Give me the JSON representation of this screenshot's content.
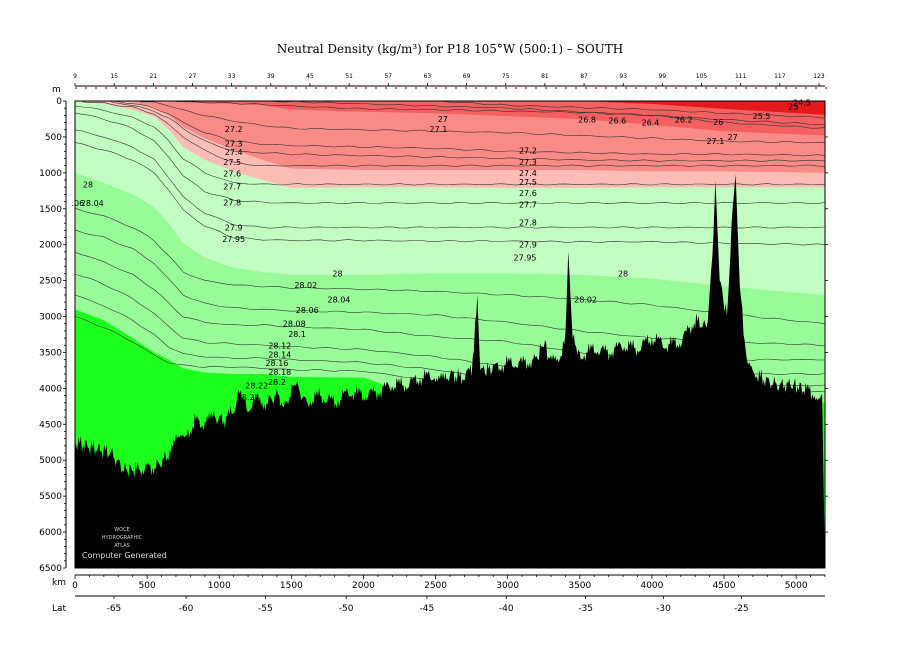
{
  "chart_data": {
    "type": "area",
    "title": "Neutral Density (kg/m³) for P18 105°W (500:1) – SOUTH",
    "axis_labels": {
      "depth": "m",
      "distance": "km",
      "latitude": "Lat"
    },
    "xlim_km": [
      0,
      5200
    ],
    "ylim_m": [
      0,
      6500
    ],
    "x_ticks": [
      "0",
      "500",
      "1000",
      "1500",
      "2000",
      "2500",
      "3000",
      "3500",
      "4000",
      "4500",
      "5000"
    ],
    "y_ticks": [
      "0",
      "500",
      "1000",
      "1500",
      "2000",
      "2500",
      "3000",
      "3500",
      "4000",
      "4500",
      "5000",
      "5500",
      "6000",
      "6500"
    ],
    "lat_ticks": [
      "-65",
      "-60",
      "-55",
      "-50",
      "-45",
      "-40",
      "-35",
      "-30",
      "-25"
    ],
    "lat_tick_km": [
      270,
      770,
      1320,
      1880,
      2440,
      2990,
      3540,
      4080,
      4620
    ],
    "station_labels": [
      "9",
      "15",
      "21",
      "27",
      "33",
      "39",
      "45",
      "51",
      "57",
      "63",
      "69",
      "75",
      "81",
      "87",
      "93",
      "99",
      "105",
      "111",
      "117",
      "123"
    ],
    "watermark": [
      "WOCE",
      "HYDROGRAPHIC",
      "ATLAS",
      "Computer Generated"
    ],
    "density_bands": [
      {
        "range": "< 26.0",
        "color": "#e4191b"
      },
      {
        "range": "26.0 – 27.0",
        "color": "#f45f5f"
      },
      {
        "range": "27.0 – 27.5",
        "color": "#fa8a85"
      },
      {
        "range": "27.5 – 27.7",
        "color": "#fcbcb6"
      },
      {
        "range": "27.7 – 28.0",
        "color": "#c2fec2"
      },
      {
        "range": "28.0 – 28.2",
        "color": "#97fb97"
      },
      {
        "range": "> 28.2",
        "color": "#1dff1d"
      }
    ],
    "contour_labels": [
      {
        "text": "24.5",
        "x_km": 5040,
        "depth_m": 20
      },
      {
        "text": "25",
        "x_km": 4980,
        "depth_m": 80
      },
      {
        "text": "25.5",
        "x_km": 4760,
        "depth_m": 210
      },
      {
        "text": "26",
        "x_km": 4460,
        "depth_m": 290
      },
      {
        "text": "26.2",
        "x_km": 4220,
        "depth_m": 260
      },
      {
        "text": "26.4",
        "x_km": 3990,
        "depth_m": 300
      },
      {
        "text": "26.6",
        "x_km": 3760,
        "depth_m": 270
      },
      {
        "text": "26.8",
        "x_km": 3550,
        "depth_m": 260
      },
      {
        "text": "27",
        "x_km": 2550,
        "depth_m": 250
      },
      {
        "text": "27.1",
        "x_km": 2520,
        "depth_m": 390
      },
      {
        "text": "27",
        "x_km": 4560,
        "depth_m": 500
      },
      {
        "text": "27.1",
        "x_km": 4440,
        "depth_m": 560
      },
      {
        "text": "27.2",
        "x_km": 1100,
        "depth_m": 390
      },
      {
        "text": "27.3",
        "x_km": 1100,
        "depth_m": 590
      },
      {
        "text": "27.4",
        "x_km": 1100,
        "depth_m": 710
      },
      {
        "text": "27.5",
        "x_km": 1090,
        "depth_m": 850
      },
      {
        "text": "27.6",
        "x_km": 1090,
        "depth_m": 1010
      },
      {
        "text": "27.7",
        "x_km": 1090,
        "depth_m": 1190
      },
      {
        "text": "27.8",
        "x_km": 1090,
        "depth_m": 1410
      },
      {
        "text": "27.9",
        "x_km": 1100,
        "depth_m": 1760
      },
      {
        "text": "27.95",
        "x_km": 1100,
        "depth_m": 1920
      },
      {
        "text": "27.2",
        "x_km": 3140,
        "depth_m": 690
      },
      {
        "text": "27.3",
        "x_km": 3140,
        "depth_m": 850
      },
      {
        "text": "27.4",
        "x_km": 3140,
        "depth_m": 1000
      },
      {
        "text": "27.5",
        "x_km": 3140,
        "depth_m": 1130
      },
      {
        "text": "27.6",
        "x_km": 3140,
        "depth_m": 1280
      },
      {
        "text": "27.7",
        "x_km": 3140,
        "depth_m": 1440
      },
      {
        "text": "27.8",
        "x_km": 3140,
        "depth_m": 1690
      },
      {
        "text": "27.9",
        "x_km": 3140,
        "depth_m": 2000
      },
      {
        "text": "27.95",
        "x_km": 3120,
        "depth_m": 2180
      },
      {
        "text": "28",
        "x_km": 90,
        "depth_m": 1160
      },
      {
        "text": ".06",
        "x_km": 20,
        "depth_m": 1420
      },
      {
        "text": "28.04",
        "x_km": 120,
        "depth_m": 1420
      },
      {
        "text": "28",
        "x_km": 1820,
        "depth_m": 2400
      },
      {
        "text": "28",
        "x_km": 3800,
        "depth_m": 2400
      },
      {
        "text": "28.02",
        "x_km": 1600,
        "depth_m": 2560
      },
      {
        "text": "28.02",
        "x_km": 3540,
        "depth_m": 2760
      },
      {
        "text": "28.04",
        "x_km": 1830,
        "depth_m": 2760
      },
      {
        "text": "28.06",
        "x_km": 1610,
        "depth_m": 2910
      },
      {
        "text": "28.08",
        "x_km": 1520,
        "depth_m": 3100
      },
      {
        "text": "28.1",
        "x_km": 1540,
        "depth_m": 3240
      },
      {
        "text": "28.12",
        "x_km": 1420,
        "depth_m": 3400
      },
      {
        "text": "28.14",
        "x_km": 1420,
        "depth_m": 3530
      },
      {
        "text": "28.16",
        "x_km": 1400,
        "depth_m": 3650
      },
      {
        "text": "28.18",
        "x_km": 1420,
        "depth_m": 3770
      },
      {
        "text": "28.2",
        "x_km": 1400,
        "depth_m": 3910
      },
      {
        "text": "28.22",
        "x_km": 1260,
        "depth_m": 3960
      },
      {
        "text": "28.24",
        "x_km": 1200,
        "depth_m": 4120
      }
    ],
    "bottom_topography": [
      [
        0,
        4750
      ],
      [
        250,
        4900
      ],
      [
        330,
        5120
      ],
      [
        420,
        5140
      ],
      [
        560,
        5090
      ],
      [
        640,
        4950
      ],
      [
        700,
        4600
      ],
      [
        760,
        4750
      ],
      [
        830,
        4450
      ],
      [
        900,
        4500
      ],
      [
        960,
        4400
      ],
      [
        1040,
        4450
      ],
      [
        1110,
        4260
      ],
      [
        1150,
        4000
      ],
      [
        1190,
        4300
      ],
      [
        1260,
        4150
      ],
      [
        1320,
        4200
      ],
      [
        1400,
        4100
      ],
      [
        1470,
        4250
      ],
      [
        1520,
        3900
      ],
      [
        1600,
        4200
      ],
      [
        1700,
        4100
      ],
      [
        1800,
        4200
      ],
      [
        1900,
        4050
      ],
      [
        2000,
        4100
      ],
      [
        2100,
        4050
      ],
      [
        2200,
        3950
      ],
      [
        2300,
        3950
      ],
      [
        2400,
        3850
      ],
      [
        2500,
        3820
      ],
      [
        2560,
        3900
      ],
      [
        2600,
        3800
      ],
      [
        2680,
        3850
      ],
      [
        2750,
        3750
      ],
      [
        2790,
        2780
      ],
      [
        2810,
        3750
      ],
      [
        2900,
        3720
      ],
      [
        3000,
        3650
      ],
      [
        3100,
        3650
      ],
      [
        3200,
        3600
      ],
      [
        3250,
        3350
      ],
      [
        3300,
        3650
      ],
      [
        3360,
        3550
      ],
      [
        3400,
        3350
      ],
      [
        3420,
        2090
      ],
      [
        3450,
        3300
      ],
      [
        3500,
        3550
      ],
      [
        3600,
        3450
      ],
      [
        3700,
        3500
      ],
      [
        3800,
        3400
      ],
      [
        3900,
        3450
      ],
      [
        4000,
        3300
      ],
      [
        4100,
        3400
      ],
      [
        4200,
        3350
      ],
      [
        4300,
        3050
      ],
      [
        4380,
        3150
      ],
      [
        4420,
        2200
      ],
      [
        4440,
        1110
      ],
      [
        4470,
        2500
      ],
      [
        4520,
        3000
      ],
      [
        4560,
        1500
      ],
      [
        4580,
        1020
      ],
      [
        4610,
        2600
      ],
      [
        4660,
        3700
      ],
      [
        4720,
        3800
      ],
      [
        4800,
        3900
      ],
      [
        4880,
        3960
      ],
      [
        4960,
        3950
      ],
      [
        5050,
        4000
      ],
      [
        5120,
        4070
      ],
      [
        5180,
        4100
      ]
    ]
  }
}
